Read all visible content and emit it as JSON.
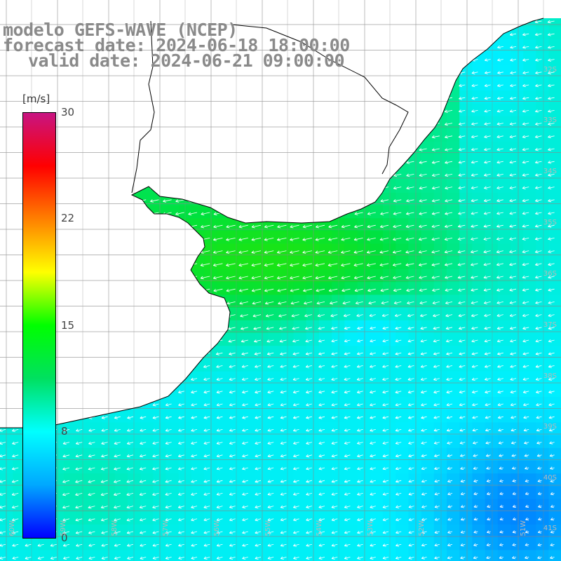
{
  "titles": {
    "line1": "modelo GEFS-WAVE (NCEP)",
    "line2": "forecast date: 2024-06-18 18:00:00",
    "line3": "valid date: 2024-06-21 09:00:00"
  },
  "colorbar": {
    "unit": "[m/s]",
    "min": 0,
    "max": 30,
    "ticks": [
      "30",
      "22",
      "15",
      "8",
      "0"
    ],
    "tick_values": [
      30,
      22,
      15,
      8,
      0
    ],
    "colors": [
      "#0000ff",
      "#00a8ff",
      "#00ffff",
      "#00e060",
      "#00ff00",
      "#ffff00",
      "#ff8000",
      "#ff0000",
      "#c81482"
    ]
  },
  "map": {
    "lat_labels": [
      "32S",
      "33S",
      "34S",
      "35S",
      "36S",
      "37S",
      "38S",
      "39S",
      "40S",
      "41S"
    ],
    "lon_labels": [
      "60W",
      "59W",
      "58W",
      "57W",
      "56W",
      "55W",
      "54W",
      "53W",
      "52W",
      "51W"
    ],
    "land_color": "#ffffff",
    "grid_color": "#888888",
    "arrow_color": "#ffffff"
  },
  "chart_data": {
    "type": "heatmap",
    "variable": "wind speed",
    "unit": "m/s",
    "value_range": [
      0,
      30
    ],
    "typical_values": {
      "coastal_green_band": 12,
      "open_ocean_cyan": 8,
      "southeast_blue": 4
    },
    "wind_direction": "from northeast toward southwest"
  }
}
